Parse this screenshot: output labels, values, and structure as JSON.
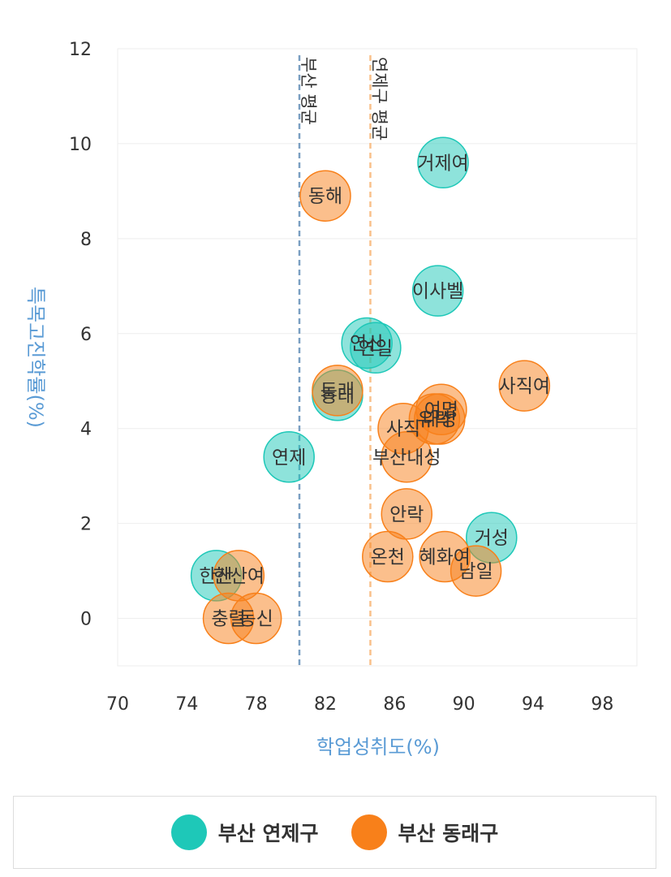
{
  "chart_data": {
    "type": "scatter",
    "xlabel": "학업성취도(%)",
    "ylabel": "특목고진학률(%)",
    "xlim": [
      70,
      100
    ],
    "ylim": [
      -1,
      12
    ],
    "xticks": [
      70,
      74,
      78,
      82,
      86,
      90,
      94,
      98
    ],
    "yticks": [
      0,
      2,
      4,
      6,
      8,
      10,
      12
    ],
    "grid": true,
    "legend_position": "bottom",
    "reference_lines": [
      {
        "label": "부산 평균",
        "x": 80.5,
        "color": "#7a9fc2"
      },
      {
        "label": "연제구 평균",
        "x": 84.6,
        "color": "#f9c08a"
      }
    ],
    "series": [
      {
        "name": "부산 연제구",
        "color": "#1ec8b8",
        "points": [
          {
            "label": "거제여",
            "x": 88.8,
            "y": 9.6
          },
          {
            "label": "이사벨",
            "x": 88.5,
            "y": 6.9
          },
          {
            "label": "연산",
            "x": 84.4,
            "y": 5.8
          },
          {
            "label": "연일",
            "x": 84.9,
            "y": 5.7
          },
          {
            "label": "동래",
            "x": 82.7,
            "y": 4.7
          },
          {
            "label": "연제",
            "x": 79.9,
            "y": 3.4
          },
          {
            "label": "거성",
            "x": 91.6,
            "y": 1.7
          },
          {
            "label": "한산",
            "x": 75.7,
            "y": 0.9
          }
        ]
      },
      {
        "name": "부산 동래구",
        "color": "#f8801a",
        "points": [
          {
            "label": "동해",
            "x": 82.0,
            "y": 8.9
          },
          {
            "label": "사직여",
            "x": 93.5,
            "y": 4.9
          },
          {
            "label": "동래",
            "x": 82.7,
            "y": 4.8
          },
          {
            "label": "여명",
            "x": 88.7,
            "y": 4.4
          },
          {
            "label": "내성",
            "x": 88.6,
            "y": 4.2
          },
          {
            "label": "유락",
            "x": 88.3,
            "y": 4.2
          },
          {
            "label": "사직",
            "x": 86.5,
            "y": 4.0
          },
          {
            "label": "부산내성",
            "x": 86.7,
            "y": 3.4
          },
          {
            "label": "안락",
            "x": 86.7,
            "y": 2.2
          },
          {
            "label": "온천",
            "x": 85.6,
            "y": 1.3
          },
          {
            "label": "혜화여",
            "x": 88.9,
            "y": 1.3
          },
          {
            "label": "남일",
            "x": 90.7,
            "y": 1.0
          },
          {
            "label": "한산여",
            "x": 77.0,
            "y": 0.9
          },
          {
            "label": "충렬",
            "x": 76.4,
            "y": 0.0
          },
          {
            "label": "동신",
            "x": 78.0,
            "y": 0.0
          }
        ]
      }
    ]
  }
}
